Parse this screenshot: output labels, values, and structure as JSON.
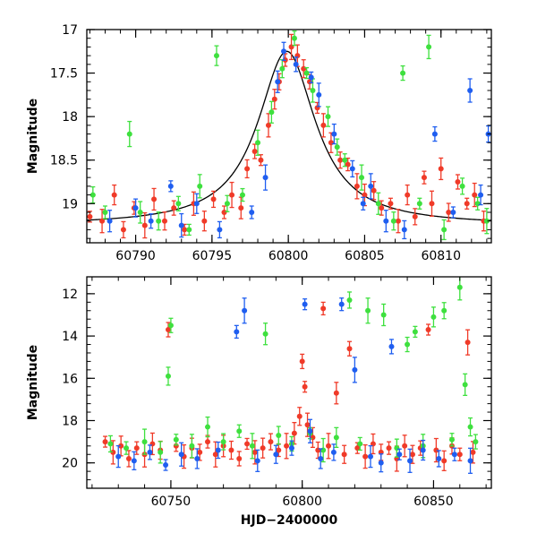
{
  "colors": {
    "green": "#3ee03e",
    "red": "#f03a28",
    "blue": "#1f5ef0",
    "model": "#000000"
  },
  "chart_data": [
    {
      "type": "scatter",
      "panel": "top",
      "xlabel": "",
      "ylabel": "Magnitude",
      "xlim": [
        60786.8,
        60813.3
      ],
      "ylim": [
        19.45,
        17.0
      ],
      "y_inverted": true,
      "xticks": [
        60790,
        60795,
        60800,
        60805,
        60810
      ],
      "yticks": [
        17,
        17.5,
        18,
        18.5,
        19
      ],
      "xtick_labels": [
        "60790",
        "60795",
        "60800",
        "60805",
        "60810"
      ],
      "ytick_labels": [
        "17",
        "17.5",
        "18",
        "18.5",
        "19"
      ],
      "model_curve": {
        "baseline_mag": 19.25,
        "peak_mag": 17.25,
        "peak_x": 60799.9,
        "width_days": 2.3
      },
      "series": [
        {
          "color": "red",
          "points": [
            [
              60787.0,
              19.15
            ],
            [
              60787.8,
              19.2
            ],
            [
              60788.6,
              18.9
            ],
            [
              60789.2,
              19.3
            ],
            [
              60789.9,
              19.05
            ],
            [
              60790.6,
              19.25
            ],
            [
              60791.2,
              18.95
            ],
            [
              60791.9,
              19.2
            ],
            [
              60792.5,
              19.05
            ],
            [
              60793.2,
              19.3
            ],
            [
              60793.8,
              19.0
            ],
            [
              60794.5,
              19.2
            ],
            [
              60795.1,
              18.95
            ],
            [
              60795.8,
              19.1
            ],
            [
              60796.3,
              18.9
            ],
            [
              60796.9,
              19.05
            ],
            [
              60797.3,
              18.6
            ],
            [
              60797.8,
              18.4
            ],
            [
              60798.2,
              18.5
            ],
            [
              60798.7,
              18.1
            ],
            [
              60799.1,
              17.8
            ],
            [
              60799.4,
              17.6
            ],
            [
              60799.8,
              17.35
            ],
            [
              60800.2,
              17.2
            ],
            [
              60800.6,
              17.3
            ],
            [
              60801.0,
              17.45
            ],
            [
              60801.4,
              17.6
            ],
            [
              60801.9,
              17.9
            ],
            [
              60802.3,
              18.1
            ],
            [
              60802.8,
              18.3
            ],
            [
              60803.4,
              18.5
            ],
            [
              60803.9,
              18.55
            ],
            [
              60804.5,
              18.8
            ],
            [
              60805.0,
              18.9
            ],
            [
              60805.6,
              18.85
            ],
            [
              60806.1,
              19.05
            ],
            [
              60806.7,
              19.0
            ],
            [
              60807.2,
              19.2
            ],
            [
              60807.8,
              18.9
            ],
            [
              60808.3,
              19.15
            ],
            [
              60808.9,
              18.7
            ],
            [
              60809.4,
              19.0
            ],
            [
              60810.0,
              18.6
            ],
            [
              60810.5,
              19.1
            ],
            [
              60811.1,
              18.75
            ],
            [
              60811.7,
              19.0
            ],
            [
              60812.2,
              18.9
            ],
            [
              60812.8,
              19.2
            ]
          ]
        },
        {
          "color": "green",
          "points": [
            [
              60787.2,
              18.9
            ],
            [
              60788.0,
              19.1
            ],
            [
              60789.6,
              18.2
            ],
            [
              60790.3,
              19.1
            ],
            [
              60791.5,
              19.2
            ],
            [
              60792.8,
              19.0
            ],
            [
              60793.5,
              19.3
            ],
            [
              60794.2,
              18.8
            ],
            [
              60795.3,
              17.3
            ],
            [
              60796.0,
              19.0
            ],
            [
              60797.0,
              18.9
            ],
            [
              60798.0,
              18.3
            ],
            [
              60798.9,
              17.95
            ],
            [
              60799.6,
              17.45
            ],
            [
              60800.4,
              17.1
            ],
            [
              60801.2,
              17.5
            ],
            [
              60801.6,
              17.7
            ],
            [
              60802.6,
              18.0
            ],
            [
              60803.2,
              18.35
            ],
            [
              60803.7,
              18.5
            ],
            [
              60804.8,
              18.7
            ],
            [
              60805.9,
              19.0
            ],
            [
              60806.9,
              19.2
            ],
            [
              60807.5,
              17.5
            ],
            [
              60808.6,
              19.0
            ],
            [
              60809.2,
              17.2
            ],
            [
              60810.2,
              19.3
            ],
            [
              60811.4,
              18.8
            ],
            [
              60812.4,
              19.0
            ],
            [
              60813.0,
              19.2
            ]
          ]
        },
        {
          "color": "blue",
          "points": [
            [
              60788.3,
              19.2
            ],
            [
              60790.0,
              19.05
            ],
            [
              60791.0,
              19.2
            ],
            [
              60792.3,
              18.8
            ],
            [
              60793.0,
              19.25
            ],
            [
              60794.0,
              19.0
            ],
            [
              60795.5,
              19.3
            ],
            [
              60797.6,
              19.1
            ],
            [
              60798.5,
              18.7
            ],
            [
              60799.3,
              17.6
            ],
            [
              60799.7,
              17.25
            ],
            [
              60800.5,
              17.4
            ],
            [
              60801.5,
              17.55
            ],
            [
              60802.0,
              17.75
            ],
            [
              60803.0,
              18.2
            ],
            [
              60804.2,
              18.6
            ],
            [
              60804.9,
              19.0
            ],
            [
              60805.4,
              18.8
            ],
            [
              60806.4,
              19.2
            ],
            [
              60807.6,
              19.3
            ],
            [
              60809.6,
              18.2
            ],
            [
              60810.8,
              19.1
            ],
            [
              60811.9,
              17.7
            ],
            [
              60812.6,
              18.9
            ],
            [
              60813.1,
              18.2
            ]
          ]
        }
      ]
    },
    {
      "type": "scatter",
      "panel": "bottom",
      "xlabel": "HJD−2400000",
      "ylabel": "Magnitude",
      "xlim": [
        60718,
        60872
      ],
      "ylim": [
        21.2,
        11.2
      ],
      "y_inverted": true,
      "xticks": [
        60750,
        60800,
        60850
      ],
      "yticks": [
        12,
        14,
        16,
        18,
        20
      ],
      "xtick_labels": [
        "60750",
        "60800",
        "60850"
      ],
      "ytick_labels": [
        "12",
        "14",
        "16",
        "18",
        "20"
      ],
      "series": [
        {
          "color": "red",
          "points": [
            [
              60725,
              19.0
            ],
            [
              60728,
              19.5
            ],
            [
              60731,
              19.2
            ],
            [
              60734,
              19.8
            ],
            [
              60737,
              19.3
            ],
            [
              60740,
              19.6
            ],
            [
              60743,
              19.1
            ],
            [
              60746,
              19.4
            ],
            [
              60749,
              13.7
            ],
            [
              60752,
              19.2
            ],
            [
              60755,
              19.7
            ],
            [
              60758,
              19.3
            ],
            [
              60761,
              19.5
            ],
            [
              60764,
              19.0
            ],
            [
              60767,
              19.6
            ],
            [
              60770,
              19.2
            ],
            [
              60773,
              19.4
            ],
            [
              60776,
              19.8
            ],
            [
              60779,
              19.1
            ],
            [
              60782,
              19.5
            ],
            [
              60785,
              19.3
            ],
            [
              60788,
              19.0
            ],
            [
              60791,
              19.4
            ],
            [
              60794,
              19.2
            ],
            [
              60797,
              18.6
            ],
            [
              60799,
              17.8
            ],
            [
              60800,
              15.2
            ],
            [
              60801,
              16.4
            ],
            [
              60802,
              18.2
            ],
            [
              60804,
              18.8
            ],
            [
              60806,
              19.4
            ],
            [
              60808,
              12.7
            ],
            [
              60810,
              19.2
            ],
            [
              60813,
              16.7
            ],
            [
              60816,
              19.6
            ],
            [
              60818,
              14.6
            ],
            [
              60821,
              19.3
            ],
            [
              60824,
              19.7
            ],
            [
              60827,
              19.1
            ],
            [
              60830,
              19.5
            ],
            [
              60833,
              19.3
            ],
            [
              60836,
              19.8
            ],
            [
              60839,
              19.2
            ],
            [
              60842,
              19.6
            ],
            [
              60845,
              19.3
            ],
            [
              60848,
              13.7
            ],
            [
              60851,
              19.4
            ],
            [
              60854,
              19.9
            ],
            [
              60857,
              19.2
            ],
            [
              60860,
              19.6
            ],
            [
              60863,
              14.3
            ],
            [
              60865,
              19.5
            ]
          ]
        },
        {
          "color": "green",
          "points": [
            [
              60727,
              19.1
            ],
            [
              60733,
              19.3
            ],
            [
              60740,
              19.0
            ],
            [
              60746,
              19.5
            ],
            [
              60749,
              15.9
            ],
            [
              60750,
              13.5
            ],
            [
              60752,
              18.9
            ],
            [
              60758,
              19.2
            ],
            [
              60764,
              18.3
            ],
            [
              60770,
              19.0
            ],
            [
              60776,
              18.5
            ],
            [
              60781,
              19.2
            ],
            [
              60786,
              13.9
            ],
            [
              60791,
              18.7
            ],
            [
              60796,
              19.1
            ],
            [
              60803,
              18.6
            ],
            [
              60808,
              19.4
            ],
            [
              60813,
              18.8
            ],
            [
              60818,
              12.3
            ],
            [
              60822,
              19.1
            ],
            [
              60825,
              12.8
            ],
            [
              60831,
              13.0
            ],
            [
              60836,
              19.3
            ],
            [
              60840,
              14.4
            ],
            [
              60843,
              13.8
            ],
            [
              60846,
              19.2
            ],
            [
              60850,
              13.1
            ],
            [
              60854,
              12.8
            ],
            [
              60857,
              18.9
            ],
            [
              60860,
              11.7
            ],
            [
              60862,
              16.3
            ],
            [
              60864,
              18.3
            ],
            [
              60866,
              19.0
            ]
          ]
        },
        {
          "color": "blue",
          "points": [
            [
              60730,
              19.7
            ],
            [
              60736,
              19.9
            ],
            [
              60742,
              19.5
            ],
            [
              60748,
              20.1
            ],
            [
              60754,
              19.6
            ],
            [
              60760,
              19.8
            ],
            [
              60768,
              19.4
            ],
            [
              60775,
              13.8
            ],
            [
              60778,
              12.8
            ],
            [
              60783,
              19.9
            ],
            [
              60790,
              19.6
            ],
            [
              60796,
              19.3
            ],
            [
              60801,
              12.5
            ],
            [
              60803,
              18.5
            ],
            [
              60807,
              19.8
            ],
            [
              60812,
              19.5
            ],
            [
              60815,
              12.5
            ],
            [
              60820,
              15.6
            ],
            [
              60826,
              19.7
            ],
            [
              60830,
              20.0
            ],
            [
              60834,
              14.5
            ],
            [
              60837,
              19.6
            ],
            [
              60841,
              19.9
            ],
            [
              60846,
              19.4
            ],
            [
              60852,
              19.8
            ],
            [
              60858,
              19.6
            ],
            [
              60864,
              19.9
            ]
          ]
        }
      ]
    }
  ]
}
